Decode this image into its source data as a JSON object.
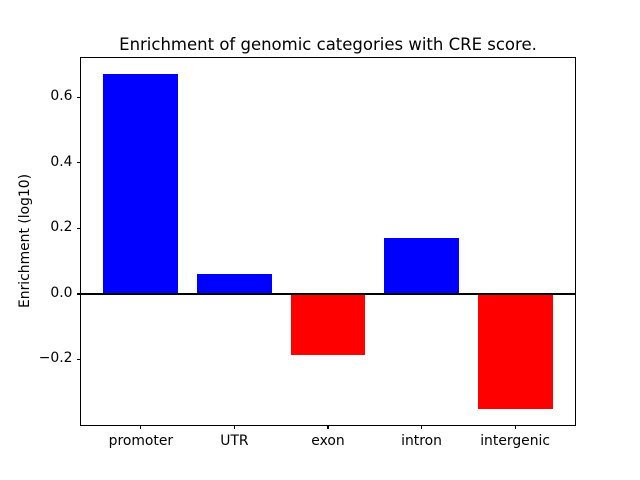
{
  "figure": {
    "title": "Enrichment of genomic categories with CRE score.",
    "ylabel": "Enrichment (log10)"
  },
  "chart_data": {
    "type": "bar",
    "title": "Enrichment of genomic categories with CRE score.",
    "xlabel": "",
    "ylabel": "Enrichment (log10)",
    "categories": [
      "promoter",
      "UTR",
      "exon",
      "intron",
      "intergenic"
    ],
    "values": [
      0.67,
      0.06,
      -0.185,
      0.17,
      -0.35
    ],
    "bar_colors": [
      "#0000ff",
      "#0000ff",
      "#ff0000",
      "#0000ff",
      "#ff0000"
    ],
    "positive_color": "#0000ff",
    "negative_color": "#ff0000",
    "axis_color": "#000000",
    "background_color": "#ffffff",
    "ylim": [
      -0.4,
      0.72
    ],
    "yticks": [
      {
        "value": -0.2,
        "label": "−0.2"
      },
      {
        "value": 0.0,
        "label": "0.0"
      },
      {
        "value": 0.2,
        "label": "0.2"
      },
      {
        "value": 0.4,
        "label": "0.4"
      },
      {
        "value": 0.6,
        "label": "0.6"
      }
    ],
    "zero_line": {
      "value": 0.0,
      "color": "#000000"
    },
    "bar_width_fraction": 0.8,
    "grid": false,
    "legend": null
  }
}
